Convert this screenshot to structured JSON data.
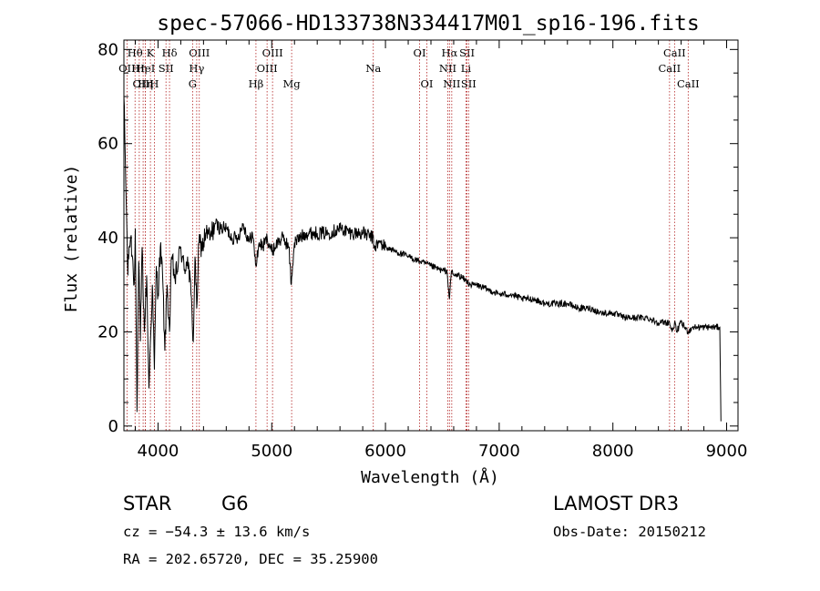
{
  "chart_data": {
    "type": "line",
    "title": "spec-57066-HD133738N334417M01_sp16-196.fits",
    "xlabel": "Wavelength (Å)",
    "ylabel": "Flux (relative)",
    "xlim": [
      3700,
      9100
    ],
    "ylim": [
      -1,
      82
    ],
    "xticks": [
      4000,
      5000,
      6000,
      7000,
      8000,
      9000
    ],
    "yticks": [
      0,
      20,
      40,
      60,
      80
    ],
    "grid": false,
    "series": [
      {
        "name": "spectrum",
        "x": [
          3700,
          3720,
          3735,
          3745,
          3760,
          3775,
          3790,
          3800,
          3815,
          3830,
          3845,
          3860,
          3880,
          3900,
          3920,
          3933,
          3950,
          3968,
          3985,
          4000,
          4020,
          4040,
          4060,
          4080,
          4101,
          4120,
          4150,
          4180,
          4200,
          4230,
          4260,
          4290,
          4310,
          4325,
          4340,
          4360,
          4390,
          4420,
          4460,
          4500,
          4550,
          4600,
          4650,
          4700,
          4750,
          4800,
          4830,
          4861,
          4890,
          4920,
          4960,
          5000,
          5050,
          5100,
          5150,
          5172,
          5183,
          5200,
          5250,
          5300,
          5400,
          5500,
          5600,
          5700,
          5800,
          5890,
          5900,
          5950,
          6000,
          6100,
          6200,
          6300,
          6400,
          6500,
          6540,
          6563,
          6580,
          6600,
          6650,
          6700,
          6750,
          6800,
          6900,
          7000,
          7100,
          7200,
          7300,
          7400,
          7500,
          7600,
          7700,
          7800,
          7900,
          8000,
          8100,
          8200,
          8300,
          8400,
          8498,
          8520,
          8542,
          8560,
          8600,
          8662,
          8700,
          8750,
          8800,
          8850,
          8900,
          8940,
          8950
        ],
        "values": [
          70,
          48,
          32,
          38,
          40,
          36,
          30,
          42,
          3,
          35,
          18,
          38,
          20,
          32,
          8,
          18,
          30,
          12,
          34,
          28,
          38,
          32,
          16,
          30,
          20,
          36,
          31,
          35,
          38,
          33,
          36,
          28,
          18,
          36,
          25,
          39,
          38,
          41,
          40,
          43,
          42,
          42,
          40,
          40,
          43,
          39,
          41,
          34,
          39,
          38,
          40,
          37,
          39,
          40,
          38,
          30,
          34,
          39,
          40,
          41,
          41,
          41,
          42,
          41,
          41,
          40,
          38,
          39,
          38,
          37,
          36,
          35,
          34,
          33,
          33,
          27,
          33,
          32,
          32,
          31,
          30,
          30,
          29,
          28,
          28,
          27,
          27,
          26,
          26,
          26,
          25,
          25,
          24,
          24,
          23,
          23,
          23,
          22,
          22,
          20,
          22,
          20,
          22,
          20,
          21,
          21,
          21,
          21,
          21,
          21,
          1
        ]
      }
    ],
    "line_markers": [
      {
        "label": "Hθ",
        "x": 3798,
        "row": 1
      },
      {
        "label": "OII",
        "x": 3727,
        "row": 2
      },
      {
        "label": "Hη",
        "x": 3835,
        "row": 2
      },
      {
        "label": "OIII",
        "x": 3869,
        "row": 3
      },
      {
        "label": "K",
        "x": 3933,
        "row": 1
      },
      {
        "label": "HeI",
        "x": 3889,
        "row": 2
      },
      {
        "label": "Hη",
        "x": 3889,
        "row": 3
      },
      {
        "label": "SII",
        "x": 4070,
        "row": 2
      },
      {
        "label": "H",
        "x": 3968,
        "row": 3
      },
      {
        "label": "Hδ",
        "x": 4101,
        "row": 1
      },
      {
        "label": "OIII",
        "x": 4363,
        "row": 1
      },
      {
        "label": "Hγ",
        "x": 4340,
        "row": 2
      },
      {
        "label": "G",
        "x": 4304,
        "row": 3
      },
      {
        "label": "OIII",
        "x": 5007,
        "row": 1
      },
      {
        "label": "OIII",
        "x": 4959,
        "row": 2
      },
      {
        "label": "Hβ",
        "x": 4861,
        "row": 3
      },
      {
        "label": "Mg",
        "x": 5175,
        "row": 3
      },
      {
        "label": "Na",
        "x": 5893,
        "row": 2
      },
      {
        "label": "OI",
        "x": 6300,
        "row": 1
      },
      {
        "label": "OI",
        "x": 6364,
        "row": 3
      },
      {
        "label": "Hα",
        "x": 6563,
        "row": 1
      },
      {
        "label": "NII",
        "x": 6548,
        "row": 2
      },
      {
        "label": "NII",
        "x": 6583,
        "row": 3
      },
      {
        "label": "SII",
        "x": 6717,
        "row": 1
      },
      {
        "label": "Li",
        "x": 6708,
        "row": 2
      },
      {
        "label": "SII",
        "x": 6731,
        "row": 3
      },
      {
        "label": "CaII",
        "x": 8542,
        "row": 1
      },
      {
        "label": "CaII",
        "x": 8498,
        "row": 2
      },
      {
        "label": "CaII",
        "x": 8662,
        "row": 3
      }
    ]
  },
  "info": {
    "object_type": "STAR",
    "subclass": "G6",
    "survey": "LAMOST DR3",
    "redshift": "cz = −54.3 ± 13.6 km/s",
    "obs_date": "Obs-Date: 20150212",
    "coords": "RA = 202.65720, DEC =  35.25900"
  },
  "colors": {
    "spectrum": "#000000",
    "marker_line": "#b22222",
    "axis": "#000000",
    "background": "#ffffff"
  }
}
